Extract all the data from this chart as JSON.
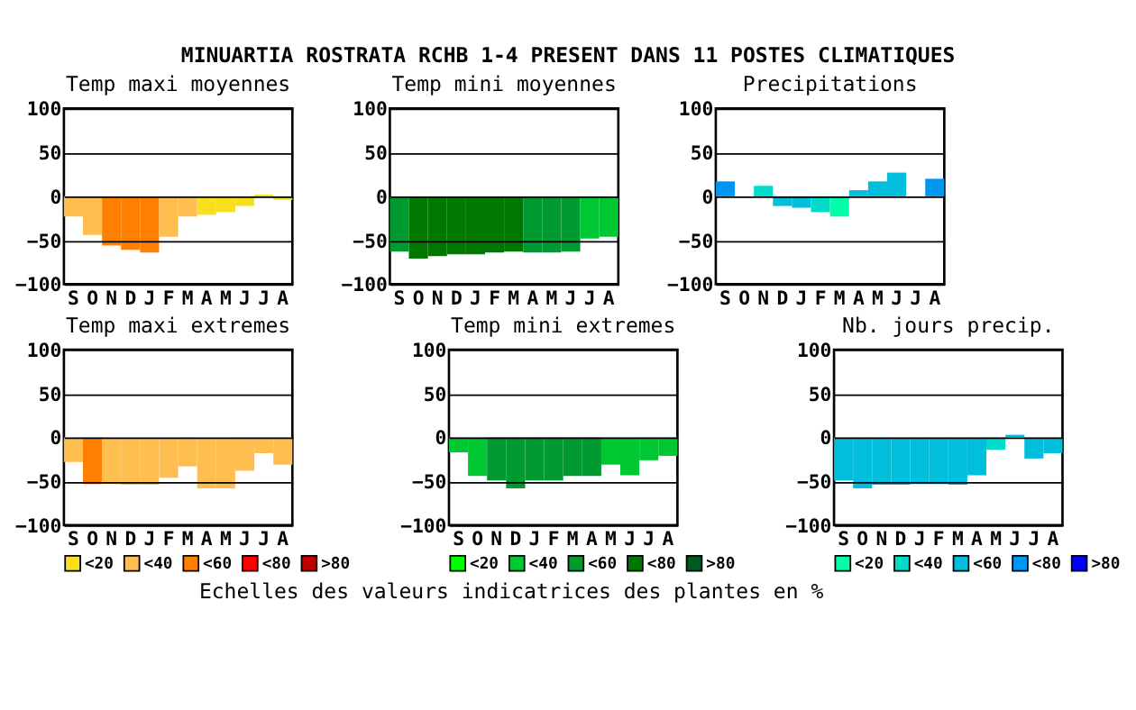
{
  "chart_data": [
    {
      "type": "other",
      "title": "MINUARTIA ROSTRATA RCHB 1-4 PRESENT DANS  11 POSTES CLIMATIQUES",
      "annotations": [
        "Echelles des valeurs indicatrices des plantes en %"
      ]
    },
    {
      "type": "bar",
      "title": "Temp maxi moyennes",
      "categories": [
        "S",
        "O",
        "N",
        "D",
        "J",
        "F",
        "M",
        "A",
        "M",
        "J",
        "J",
        "A"
      ],
      "ylim": [
        -100,
        100
      ],
      "yticks": [
        -100,
        -50,
        0,
        50,
        100
      ],
      "grid": "y",
      "legend": false,
      "values": [
        -23,
        -44,
        -56,
        -61,
        -64,
        -46,
        -23,
        -21,
        -18,
        -11,
        2,
        -4
      ],
      "colors": [
        "#ffbe50",
        "#ffbe50",
        "#ff8000",
        "#ff8000",
        "#ff8000",
        "#ffbe50",
        "#ffbe50",
        "#f8e020",
        "#f8e020",
        "#f8e020",
        "#f8e020",
        "#f8e020"
      ]
    },
    {
      "type": "bar",
      "title": "Temp mini moyennes",
      "categories": [
        "S",
        "O",
        "N",
        "D",
        "J",
        "F",
        "M",
        "A",
        "M",
        "J",
        "J",
        "A"
      ],
      "ylim": [
        -100,
        100
      ],
      "yticks": [
        -100,
        -50,
        0,
        50,
        100
      ],
      "grid": "y",
      "legend": false,
      "values": [
        -63,
        -71,
        -68,
        -66,
        -66,
        -64,
        -63,
        -64,
        -64,
        -63,
        -48,
        -46
      ],
      "colors": [
        "#009a30",
        "#007800",
        "#007800",
        "#007800",
        "#007800",
        "#007800",
        "#007800",
        "#009a30",
        "#009a30",
        "#009a30",
        "#00c832",
        "#00c832"
      ]
    },
    {
      "type": "bar",
      "title": "Precipitations",
      "categories": [
        "S",
        "O",
        "N",
        "D",
        "J",
        "F",
        "M",
        "A",
        "M",
        "J",
        "J",
        "A"
      ],
      "ylim": [
        -100,
        100
      ],
      "yticks": [
        -100,
        -50,
        0,
        50,
        100
      ],
      "grid": "y",
      "legend": false,
      "values": [
        17,
        null,
        12,
        -11,
        -13,
        -18,
        -23,
        7,
        17,
        27,
        null,
        20
      ],
      "colors": [
        "#0096f0",
        "#00dcc8",
        "#00dcc8",
        "#00bedc",
        "#00bedc",
        "#00dcc8",
        "#00ffaa",
        "#00bedc",
        "#00bedc",
        "#00bedc",
        "#00bedc",
        "#0096f0"
      ]
    },
    {
      "type": "bar",
      "title": "Temp maxi extremes",
      "categories": [
        "S",
        "O",
        "N",
        "D",
        "J",
        "F",
        "M",
        "A",
        "M",
        "J",
        "J",
        "A"
      ],
      "ylim": [
        -100,
        100
      ],
      "yticks": [
        -100,
        -50,
        0,
        50,
        100
      ],
      "grid": "y",
      "legend": "bottom",
      "series": [
        {
          "name": "<20",
          "color": "#f8e020",
          "values": [
            null,
            null,
            null,
            null,
            null,
            null,
            null,
            null,
            null,
            null,
            null,
            null
          ]
        },
        {
          "name": "<40",
          "color": "#ffbe50",
          "values": [
            -28,
            null,
            -53,
            -54,
            -54,
            -46,
            -33,
            -58,
            -58,
            -38,
            -18,
            -31
          ]
        },
        {
          "name": "<60",
          "color": "#ff8000",
          "values": [
            null,
            -53,
            null,
            null,
            null,
            null,
            null,
            null,
            null,
            null,
            null,
            null
          ]
        },
        {
          "name": "<80",
          "color": "#ff0000",
          "values": [
            null,
            null,
            null,
            null,
            null,
            null,
            null,
            null,
            null,
            null,
            null,
            null
          ]
        },
        {
          "name": ">80",
          "color": "#c00000",
          "values": [
            null,
            null,
            null,
            null,
            null,
            null,
            null,
            null,
            null,
            null,
            null,
            null
          ]
        }
      ]
    },
    {
      "type": "bar",
      "title": "Temp mini extremes",
      "categories": [
        "S",
        "O",
        "N",
        "D",
        "J",
        "F",
        "M",
        "A",
        "M",
        "J",
        "J",
        "A"
      ],
      "ylim": [
        -100,
        100
      ],
      "yticks": [
        -100,
        -50,
        0,
        50,
        100
      ],
      "grid": "y",
      "legend": "bottom",
      "series": [
        {
          "name": "<20",
          "color": "#00ff00",
          "values": [
            null,
            null,
            null,
            null,
            null,
            null,
            null,
            null,
            null,
            null,
            null,
            null
          ]
        },
        {
          "name": "<40",
          "color": "#00c832",
          "values": [
            -17,
            -44,
            null,
            null,
            null,
            null,
            null,
            null,
            -31,
            -43,
            -26,
            -21
          ]
        },
        {
          "name": "<60",
          "color": "#009a30",
          "values": [
            null,
            null,
            -49,
            -58,
            -49,
            -49,
            -44,
            -44,
            null,
            null,
            null,
            null
          ]
        },
        {
          "name": "<80",
          "color": "#007800",
          "values": [
            null,
            null,
            null,
            null,
            null,
            null,
            null,
            null,
            null,
            null,
            null,
            null
          ]
        },
        {
          "name": ">80",
          "color": "#005a20",
          "values": [
            null,
            null,
            null,
            null,
            null,
            null,
            null,
            null,
            null,
            null,
            null,
            null
          ]
        }
      ]
    },
    {
      "type": "bar",
      "title": "Nb. jours precip.",
      "categories": [
        "S",
        "O",
        "N",
        "D",
        "J",
        "F",
        "M",
        "A",
        "M",
        "J",
        "J",
        "A"
      ],
      "ylim": [
        -100,
        100
      ],
      "yticks": [
        -100,
        -50,
        0,
        50,
        100
      ],
      "grid": "y",
      "legend": "bottom",
      "series": [
        {
          "name": "<20",
          "color": "#00ffaa",
          "values": [
            null,
            null,
            null,
            null,
            null,
            null,
            null,
            null,
            null,
            null,
            null,
            null
          ]
        },
        {
          "name": "<40",
          "color": "#00dcc8",
          "values": [
            null,
            null,
            null,
            null,
            null,
            null,
            null,
            null,
            -14,
            null,
            null,
            null
          ]
        },
        {
          "name": "<60",
          "color": "#00bedc",
          "values": [
            -49,
            -58,
            -54,
            -54,
            -53,
            -53,
            -54,
            -43,
            null,
            3,
            -24,
            -18
          ]
        },
        {
          "name": "<80",
          "color": "#0096f0",
          "values": [
            null,
            null,
            null,
            null,
            null,
            null,
            null,
            null,
            null,
            null,
            null,
            null
          ]
        },
        {
          "name": ">80",
          "color": "#0000ff",
          "values": [
            null,
            null,
            null,
            null,
            null,
            null,
            null,
            null,
            null,
            null,
            null,
            null
          ]
        }
      ]
    }
  ]
}
